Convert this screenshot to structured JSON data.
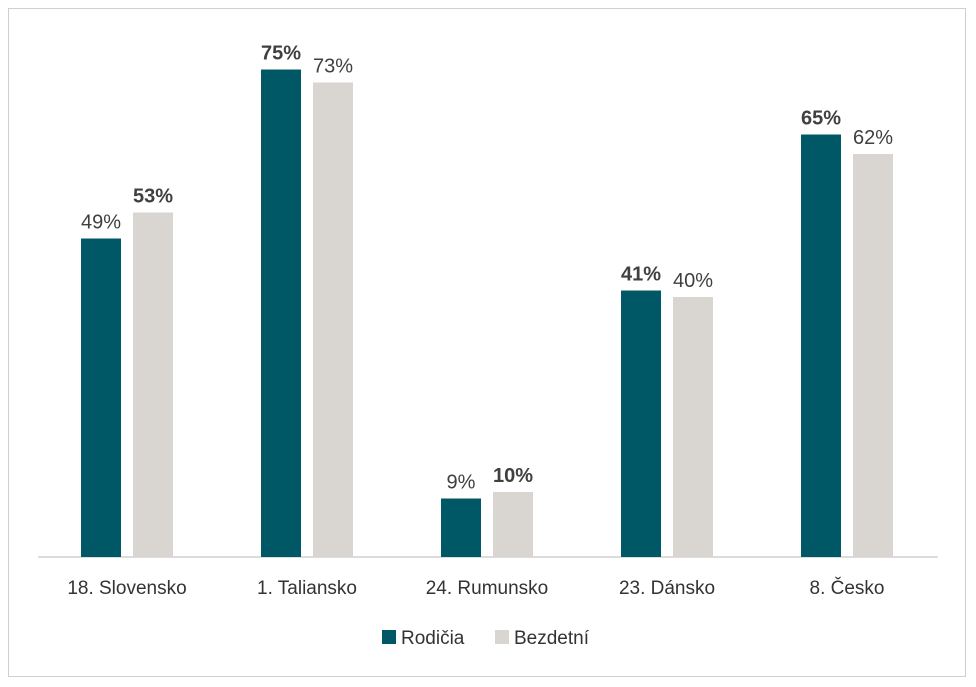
{
  "chart_data": {
    "type": "bar",
    "title": "",
    "xlabel": "",
    "ylabel": "",
    "ylim": [
      0,
      78
    ],
    "grid": false,
    "legend_position": "bottom-center",
    "categories": [
      "18. Slovensko",
      "1. Taliansko",
      "24. Rumunsko",
      "23. Dánsko",
      "8. Česko"
    ],
    "series": [
      {
        "name": "Rodičia",
        "color": "#005866",
        "values": [
          49,
          75,
          9,
          41,
          65
        ],
        "labels": [
          "49%",
          "75%",
          "9%",
          "41%",
          "65%"
        ],
        "bold": [
          false,
          true,
          false,
          true,
          true
        ]
      },
      {
        "name": "Bezdetní",
        "color": "#d9d6d1",
        "values": [
          53,
          73,
          10,
          40,
          62
        ],
        "labels": [
          "53%",
          "73%",
          "10%",
          "40%",
          "62%"
        ],
        "bold": [
          true,
          false,
          true,
          false,
          false
        ]
      }
    ]
  }
}
